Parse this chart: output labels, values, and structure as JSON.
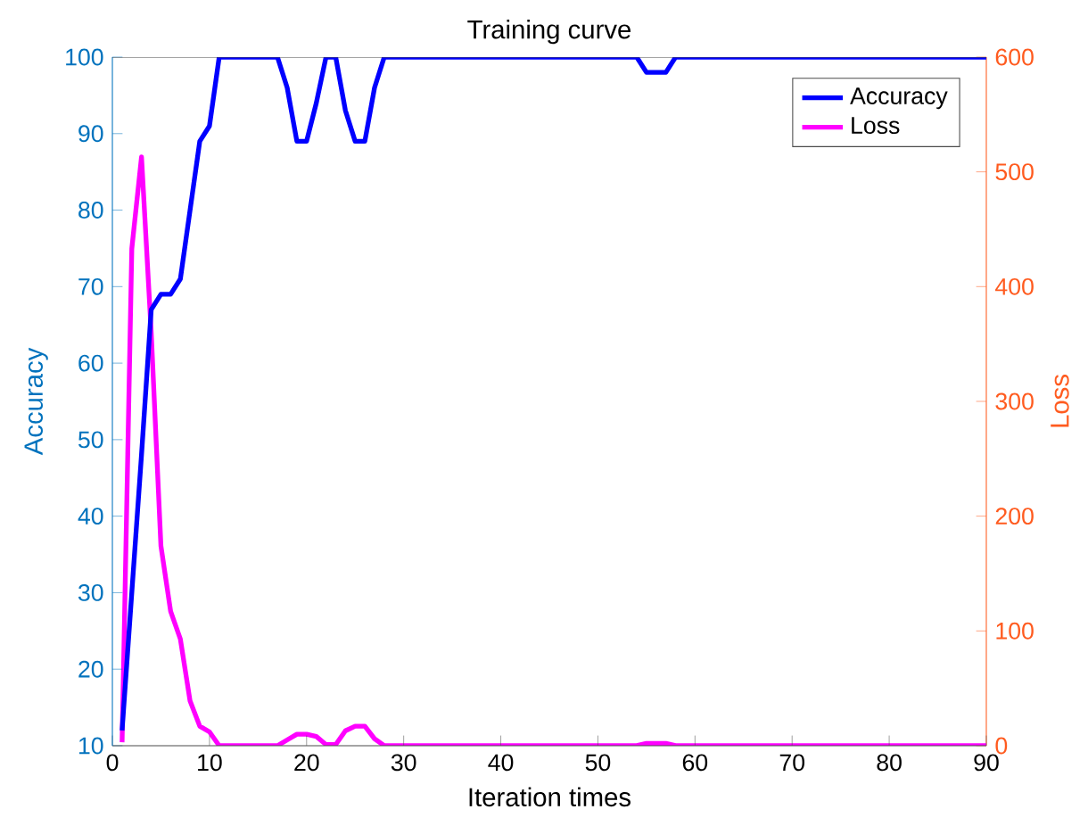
{
  "chart_data": {
    "type": "line",
    "title": "Training curve",
    "xlabel": "Iteration times",
    "ylabel": "Accuracy",
    "y2label": "Loss",
    "x": [
      1,
      2,
      3,
      4,
      5,
      6,
      7,
      8,
      9,
      10,
      11,
      12,
      13,
      14,
      15,
      16,
      17,
      18,
      19,
      20,
      21,
      22,
      23,
      24,
      25,
      26,
      27,
      28,
      29,
      30,
      31,
      32,
      33,
      34,
      35,
      36,
      37,
      38,
      39,
      40,
      41,
      42,
      43,
      44,
      45,
      46,
      47,
      48,
      49,
      50,
      51,
      52,
      53,
      54,
      55,
      56,
      57,
      58,
      59,
      60,
      61,
      62,
      63,
      64,
      65,
      66,
      67,
      68,
      69,
      70,
      71,
      72,
      73,
      74,
      75,
      76,
      77,
      78,
      79,
      80,
      81,
      82,
      83,
      84,
      85,
      86,
      87,
      88,
      89,
      90
    ],
    "series": [
      {
        "name": "Accuracy",
        "color": "#0000ff",
        "values": [
          12,
          30,
          48,
          67,
          69,
          69,
          71,
          80,
          89,
          91,
          100,
          100,
          100,
          100,
          100,
          100,
          100,
          96,
          89,
          89,
          94,
          100,
          100,
          93,
          89,
          89,
          96,
          100,
          100,
          100,
          100,
          100,
          100,
          100,
          100,
          100,
          100,
          100,
          100,
          100,
          100,
          100,
          100,
          100,
          100,
          100,
          100,
          100,
          100,
          100,
          100,
          100,
          100,
          100,
          98,
          98,
          98,
          100,
          100,
          100,
          100,
          100,
          100,
          100,
          100,
          100,
          100,
          100,
          100,
          100,
          100,
          100,
          100,
          100,
          100,
          100,
          100,
          100,
          100,
          100,
          100,
          100,
          100,
          100,
          100,
          100,
          100,
          100,
          100,
          100
        ]
      },
      {
        "name": "Loss",
        "color": "#ff00ff",
        "axis": "y2",
        "values": [
          3,
          433,
          513,
          360,
          174,
          117,
          93,
          39,
          17,
          12,
          0,
          0,
          0,
          0,
          0,
          0,
          0,
          5,
          10,
          10,
          8,
          1,
          1,
          13,
          17,
          17,
          6,
          0,
          0,
          0,
          0,
          0,
          0,
          0,
          0,
          0,
          0,
          0,
          0,
          0,
          0,
          0,
          0,
          0,
          0,
          0,
          0,
          0,
          0,
          0,
          0,
          0,
          0,
          0,
          2,
          2,
          2,
          0,
          0,
          0,
          0,
          0,
          0,
          0,
          0,
          0,
          0,
          0,
          0,
          0,
          0,
          0,
          0,
          0,
          0,
          0,
          0,
          0,
          0,
          0,
          0,
          0,
          0,
          0,
          0,
          0,
          0,
          0,
          0,
          0
        ]
      }
    ],
    "xlim": [
      0,
      90
    ],
    "xticks": [
      0,
      10,
      20,
      30,
      40,
      50,
      60,
      70,
      80,
      90
    ],
    "ylim": [
      10,
      100
    ],
    "yticks": [
      10,
      20,
      30,
      40,
      50,
      60,
      70,
      80,
      90,
      100
    ],
    "y2lim": [
      0,
      600
    ],
    "y2ticks": [
      0,
      100,
      200,
      300,
      400,
      500,
      600
    ],
    "legend": "top right",
    "grid": false
  }
}
